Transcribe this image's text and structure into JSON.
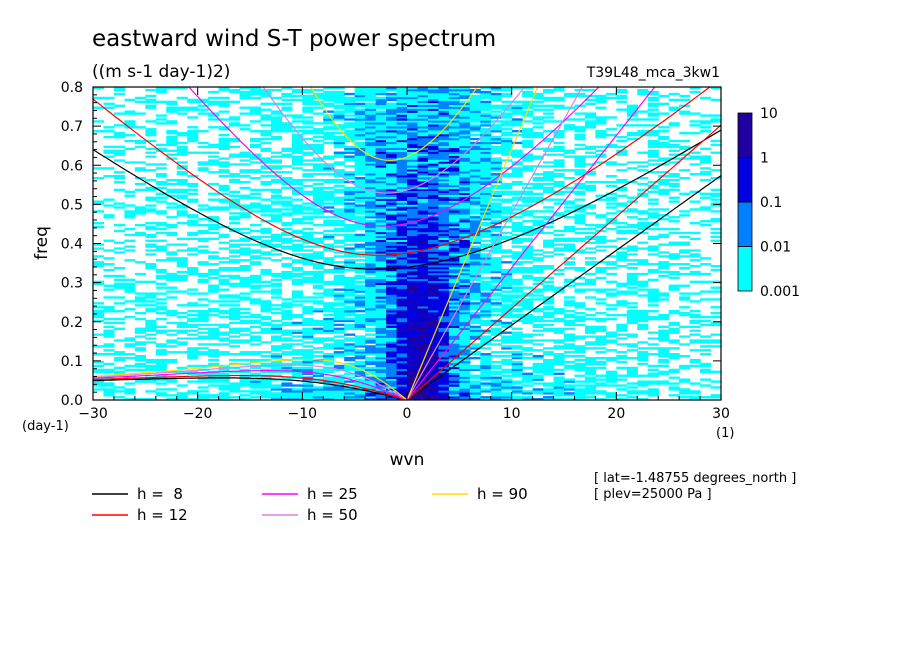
{
  "chart_data": {
    "type": "heatmap",
    "title": "eastward wind S-T power spectrum",
    "subtitle": "((m s-1 day-1)2)",
    "run_label": "T39L48_mca_3kw1",
    "xlabel": "wvn",
    "ylabel": "freq",
    "x_unit": "(1)",
    "y_unit": "(day-1)",
    "xlim": [
      -30,
      30
    ],
    "ylim": [
      0,
      0.8
    ],
    "x_ticks": [
      -30,
      -20,
      -10,
      0,
      10,
      20,
      30
    ],
    "y_ticks": [
      0.0,
      0.1,
      0.2,
      0.3,
      0.4,
      0.5,
      0.6,
      0.7,
      0.8
    ],
    "colorbar": {
      "levels": [
        "0.001",
        "0.01",
        "0.1",
        "1",
        "10"
      ],
      "colors": [
        "#00ffff",
        "#0080ff",
        "#0000e0",
        "#2000a0"
      ]
    },
    "dispersion_curves": [
      {
        "name": "h =  8",
        "h": 8,
        "color": "#000000"
      },
      {
        "name": "h = 12",
        "h": 12,
        "color": "#ff0000"
      },
      {
        "name": "h = 25",
        "h": 25,
        "color": "#ff00ff"
      },
      {
        "name": "h = 50",
        "h": 50,
        "color": "#e080e0"
      },
      {
        "name": "h = 90",
        "h": 90,
        "color": "#ffdd00"
      }
    ],
    "annotations": [
      "[ lat=-1.48755 degrees_north ]",
      "[ plev=25000 Pa ]"
    ]
  }
}
